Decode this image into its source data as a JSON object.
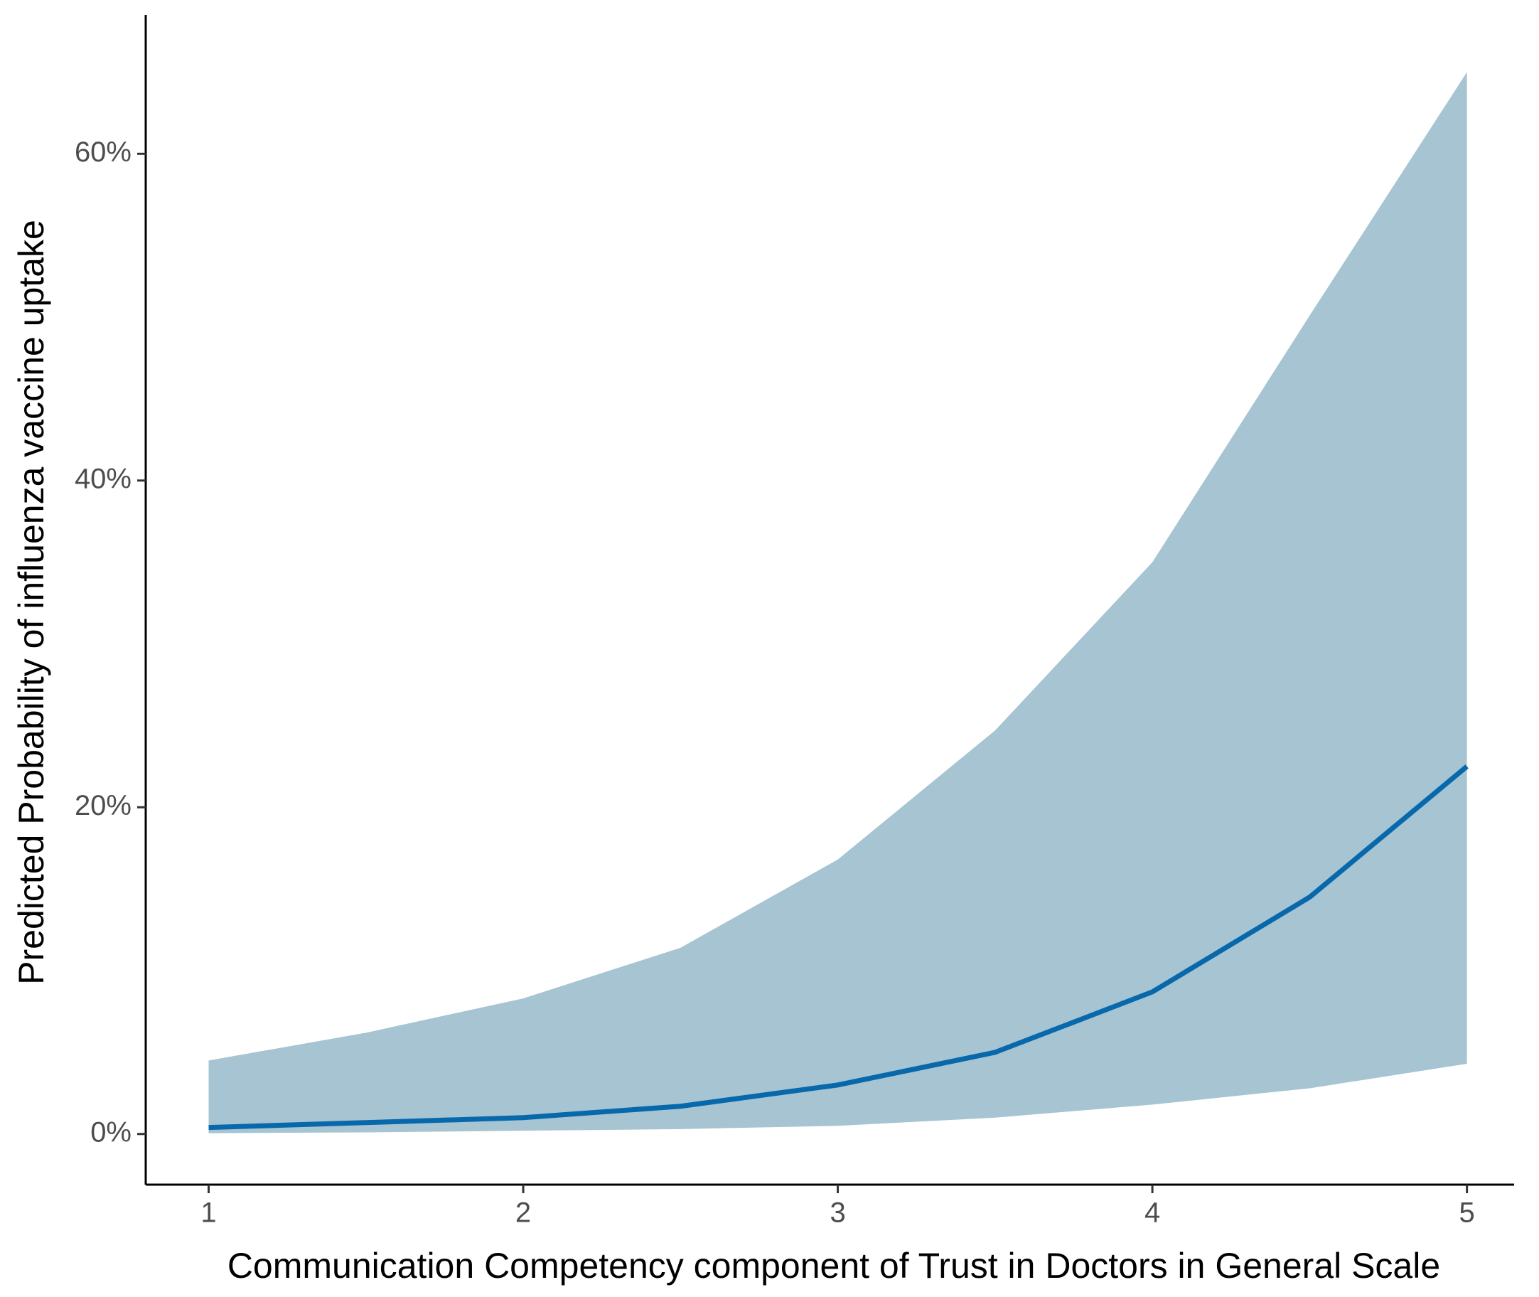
{
  "chart_data": {
    "type": "line",
    "x_label": "Communication Competency component of Trust in Doctors in General Scale",
    "y_label": "Predicted Probability of influenza vaccine uptake",
    "x": [
      1,
      1.5,
      2,
      2.5,
      3,
      3.5,
      4,
      4.5,
      5
    ],
    "series": [
      {
        "color": "#0868ac",
        "values": [
          0.4,
          0.7,
          1.0,
          1.7,
          3.0,
          5.0,
          8.7,
          14.5,
          22.5
        ],
        "lower": [
          0.05,
          0.1,
          0.2,
          0.3,
          0.5,
          1.0,
          1.8,
          2.8,
          4.3
        ],
        "upper": [
          4.5,
          6.2,
          8.3,
          11.4,
          16.8,
          24.7,
          35.0,
          50.1,
          65.0
        ],
        "band_color": "#a6c4d2"
      }
    ],
    "xlim": [
      0.8,
      5.15
    ],
    "ylim": [
      -3.1,
      68.5
    ],
    "xticks": [
      1,
      2,
      3,
      4,
      5
    ],
    "yticks": [
      {
        "value": 0,
        "label": "0%"
      },
      {
        "value": 20,
        "label": "20%"
      },
      {
        "value": 40,
        "label": "40%"
      },
      {
        "value": 60,
        "label": "60%"
      }
    ],
    "grid": false
  }
}
